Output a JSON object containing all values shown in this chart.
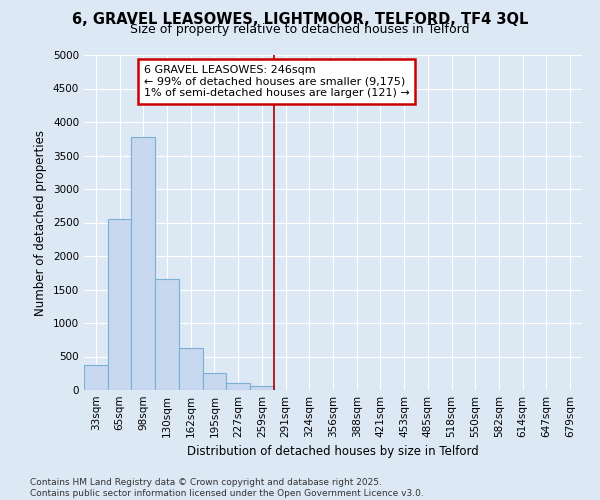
{
  "title": "6, GRAVEL LEASOWES, LIGHTMOOR, TELFORD, TF4 3QL",
  "subtitle": "Size of property relative to detached houses in Telford",
  "xlabel": "Distribution of detached houses by size in Telford",
  "ylabel": "Number of detached properties",
  "categories": [
    "33sqm",
    "65sqm",
    "98sqm",
    "130sqm",
    "162sqm",
    "195sqm",
    "227sqm",
    "259sqm",
    "291sqm",
    "324sqm",
    "356sqm",
    "388sqm",
    "421sqm",
    "453sqm",
    "485sqm",
    "518sqm",
    "550sqm",
    "582sqm",
    "614sqm",
    "647sqm",
    "679sqm"
  ],
  "values": [
    375,
    2550,
    3775,
    1650,
    625,
    250,
    100,
    65,
    0,
    0,
    0,
    0,
    0,
    0,
    0,
    0,
    0,
    0,
    0,
    0,
    0
  ],
  "bar_color": "#c8d8ee",
  "bar_edge_color": "#7bafd4",
  "vline_x": 7.5,
  "vline_color": "#aa0000",
  "annotation_text": "6 GRAVEL LEASOWES: 246sqm\n← 99% of detached houses are smaller (9,175)\n1% of semi-detached houses are larger (121) →",
  "annotation_box_facecolor": "#ffffff",
  "annotation_box_edge": "#cc0000",
  "ylim": [
    0,
    5000
  ],
  "yticks": [
    0,
    500,
    1000,
    1500,
    2000,
    2500,
    3000,
    3500,
    4000,
    4500,
    5000
  ],
  "background_color": "#dde8f5",
  "grid_color": "#ffffff",
  "footer_line1": "Contains HM Land Registry data © Crown copyright and database right 2025.",
  "footer_line2": "Contains public sector information licensed under the Open Government Licence v3.0.",
  "title_fontsize": 10.5,
  "subtitle_fontsize": 9,
  "axis_label_fontsize": 8.5,
  "tick_fontsize": 7.5,
  "annotation_fontsize": 8,
  "footer_fontsize": 6.5
}
